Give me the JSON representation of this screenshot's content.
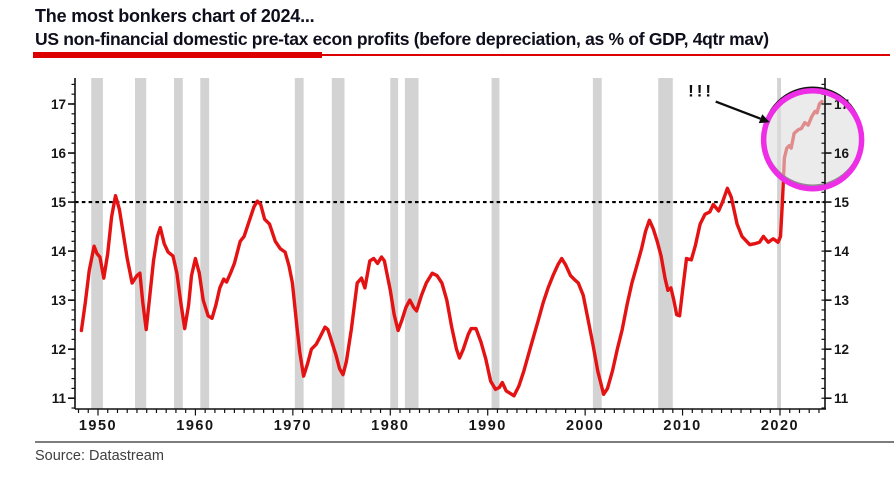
{
  "header": {
    "title": "The most bonkers chart of 2024...",
    "subtitle": "US non-financial domestic pre-tax econ profits (before depreciation, as % of GDP, 4qtr mav)"
  },
  "footer": {
    "source": "Source: Datastream"
  },
  "colors": {
    "line": "#e41212",
    "recession_band": "#d3d3d3",
    "reference_line": "#000000",
    "axis": "#111111",
    "tick_label": "#161616",
    "title_underline": "#dd0000",
    "highlight_circle": "#ee2de6",
    "highlight_shadow": "#141414",
    "highlight_fill": "rgba(222,222,222,0.6)"
  },
  "chart_data": {
    "type": "line",
    "title": "US non-financial domestic pre-tax econ profits (before depreciation, as % of GDP, 4qtr mav)",
    "xlabel": "",
    "ylabel": "",
    "x_range": [
      1947.64,
      2024.62
    ],
    "y_range": [
      10.78,
      17.53
    ],
    "x_ticks": [
      1950,
      1960,
      1970,
      1980,
      1990,
      2000,
      2010,
      2020
    ],
    "y_ticks": [
      11,
      12,
      13,
      14,
      15,
      16,
      17
    ],
    "y_minor_step": 0.2,
    "grid": "off",
    "legend": "none",
    "reference_line_value": 15,
    "recessions": [
      [
        1949.3,
        1950.5
      ],
      [
        1953.8,
        1954.95
      ],
      [
        1957.8,
        1958.7
      ],
      [
        1960.5,
        1961.4
      ],
      [
        1970.2,
        1971.1
      ],
      [
        1974.0,
        1975.3
      ],
      [
        1980.0,
        1980.8
      ],
      [
        1981.5,
        1982.9
      ],
      [
        1990.4,
        1991.2
      ],
      [
        2000.8,
        2001.7
      ],
      [
        2007.5,
        2009.0
      ],
      [
        2019.7,
        2020.1
      ]
    ],
    "annotations": {
      "exclamation": {
        "text": "!!!",
        "year": 2011.9,
        "value": 17.28
      },
      "arrow": {
        "tail": {
          "year": 2013.4,
          "value": 17.05
        },
        "head": {
          "year": 2018.0,
          "value": 16.7
        }
      },
      "highlight_circle": {
        "center_year": 2023.35,
        "center_value": 16.27,
        "radius_px": 49
      }
    },
    "series": [
      {
        "name": "US non-financial domestic pre-tax econ profits, % of GDP, 4qtr mav",
        "points": [
          [
            1948.3,
            12.38
          ],
          [
            1948.7,
            12.95
          ],
          [
            1949.1,
            13.6
          ],
          [
            1949.6,
            14.1
          ],
          [
            1949.9,
            13.95
          ],
          [
            1950.2,
            13.88
          ],
          [
            1950.6,
            13.45
          ],
          [
            1951.0,
            13.95
          ],
          [
            1951.4,
            14.7
          ],
          [
            1951.8,
            15.13
          ],
          [
            1952.2,
            14.85
          ],
          [
            1952.6,
            14.35
          ],
          [
            1953.0,
            13.85
          ],
          [
            1953.5,
            13.35
          ],
          [
            1954.0,
            13.5
          ],
          [
            1954.3,
            13.55
          ],
          [
            1954.6,
            12.95
          ],
          [
            1954.95,
            12.4
          ],
          [
            1955.3,
            13.05
          ],
          [
            1955.7,
            13.8
          ],
          [
            1956.1,
            14.3
          ],
          [
            1956.4,
            14.48
          ],
          [
            1956.8,
            14.15
          ],
          [
            1957.2,
            13.98
          ],
          [
            1957.7,
            13.9
          ],
          [
            1958.1,
            13.55
          ],
          [
            1958.5,
            12.95
          ],
          [
            1958.9,
            12.42
          ],
          [
            1959.3,
            12.9
          ],
          [
            1959.6,
            13.5
          ],
          [
            1960.0,
            13.85
          ],
          [
            1960.4,
            13.55
          ],
          [
            1960.8,
            13.0
          ],
          [
            1961.3,
            12.68
          ],
          [
            1961.7,
            12.63
          ],
          [
            1962.1,
            12.9
          ],
          [
            1962.5,
            13.25
          ],
          [
            1962.9,
            13.43
          ],
          [
            1963.2,
            13.37
          ],
          [
            1963.6,
            13.55
          ],
          [
            1964.0,
            13.75
          ],
          [
            1964.6,
            14.2
          ],
          [
            1965.0,
            14.3
          ],
          [
            1965.5,
            14.6
          ],
          [
            1966.0,
            14.9
          ],
          [
            1966.35,
            15.02
          ],
          [
            1966.7,
            14.95
          ],
          [
            1967.1,
            14.65
          ],
          [
            1967.6,
            14.55
          ],
          [
            1968.2,
            14.2
          ],
          [
            1968.7,
            14.05
          ],
          [
            1969.2,
            13.98
          ],
          [
            1969.6,
            13.7
          ],
          [
            1969.95,
            13.35
          ],
          [
            1970.4,
            12.5
          ],
          [
            1970.7,
            11.95
          ],
          [
            1971.1,
            11.45
          ],
          [
            1971.5,
            11.7
          ],
          [
            1971.9,
            12.0
          ],
          [
            1972.4,
            12.1
          ],
          [
            1972.8,
            12.25
          ],
          [
            1973.3,
            12.45
          ],
          [
            1973.6,
            12.4
          ],
          [
            1974.0,
            12.15
          ],
          [
            1974.4,
            11.9
          ],
          [
            1974.8,
            11.6
          ],
          [
            1975.15,
            11.48
          ],
          [
            1975.5,
            11.75
          ],
          [
            1976.0,
            12.4
          ],
          [
            1976.6,
            13.35
          ],
          [
            1977.05,
            13.45
          ],
          [
            1977.4,
            13.25
          ],
          [
            1977.9,
            13.8
          ],
          [
            1978.3,
            13.85
          ],
          [
            1978.7,
            13.75
          ],
          [
            1979.1,
            13.88
          ],
          [
            1979.4,
            13.8
          ],
          [
            1980.0,
            13.2
          ],
          [
            1980.4,
            12.7
          ],
          [
            1980.8,
            12.38
          ],
          [
            1981.2,
            12.6
          ],
          [
            1981.6,
            12.85
          ],
          [
            1982.0,
            13.0
          ],
          [
            1982.4,
            12.85
          ],
          [
            1982.7,
            12.78
          ],
          [
            1983.2,
            13.1
          ],
          [
            1983.7,
            13.35
          ],
          [
            1984.3,
            13.55
          ],
          [
            1984.8,
            13.5
          ],
          [
            1985.3,
            13.35
          ],
          [
            1985.8,
            13.0
          ],
          [
            1986.3,
            12.45
          ],
          [
            1986.8,
            12.0
          ],
          [
            1987.1,
            11.82
          ],
          [
            1987.5,
            12.0
          ],
          [
            1988.0,
            12.3
          ],
          [
            1988.3,
            12.42
          ],
          [
            1988.8,
            12.42
          ],
          [
            1989.3,
            12.15
          ],
          [
            1989.8,
            11.8
          ],
          [
            1990.3,
            11.35
          ],
          [
            1990.8,
            11.18
          ],
          [
            1991.2,
            11.22
          ],
          [
            1991.5,
            11.32
          ],
          [
            1991.9,
            11.15
          ],
          [
            1992.3,
            11.1
          ],
          [
            1992.7,
            11.05
          ],
          [
            1993.2,
            11.25
          ],
          [
            1993.7,
            11.55
          ],
          [
            1994.2,
            11.9
          ],
          [
            1994.7,
            12.25
          ],
          [
            1995.2,
            12.6
          ],
          [
            1995.7,
            12.95
          ],
          [
            1996.2,
            13.25
          ],
          [
            1996.7,
            13.5
          ],
          [
            1997.2,
            13.72
          ],
          [
            1997.6,
            13.85
          ],
          [
            1998.0,
            13.72
          ],
          [
            1998.5,
            13.5
          ],
          [
            1998.9,
            13.42
          ],
          [
            1999.3,
            13.35
          ],
          [
            1999.8,
            13.1
          ],
          [
            2000.3,
            12.6
          ],
          [
            2000.8,
            12.1
          ],
          [
            2001.3,
            11.55
          ],
          [
            2001.9,
            11.08
          ],
          [
            2002.3,
            11.2
          ],
          [
            2002.8,
            11.55
          ],
          [
            2003.3,
            12.0
          ],
          [
            2003.8,
            12.4
          ],
          [
            2004.3,
            12.9
          ],
          [
            2004.8,
            13.35
          ],
          [
            2005.3,
            13.7
          ],
          [
            2005.8,
            14.05
          ],
          [
            2006.2,
            14.4
          ],
          [
            2006.6,
            14.63
          ],
          [
            2007.0,
            14.45
          ],
          [
            2007.4,
            14.2
          ],
          [
            2007.8,
            13.9
          ],
          [
            2008.2,
            13.45
          ],
          [
            2008.5,
            13.2
          ],
          [
            2008.8,
            13.25
          ],
          [
            2009.1,
            13.0
          ],
          [
            2009.4,
            12.7
          ],
          [
            2009.7,
            12.68
          ],
          [
            2010.0,
            13.2
          ],
          [
            2010.4,
            13.85
          ],
          [
            2010.9,
            13.82
          ],
          [
            2011.3,
            14.1
          ],
          [
            2011.8,
            14.55
          ],
          [
            2012.3,
            14.75
          ],
          [
            2012.8,
            14.8
          ],
          [
            2013.15,
            14.95
          ],
          [
            2013.7,
            14.82
          ],
          [
            2014.1,
            15.0
          ],
          [
            2014.6,
            15.28
          ],
          [
            2015.0,
            15.1
          ],
          [
            2015.6,
            14.55
          ],
          [
            2016.1,
            14.3
          ],
          [
            2016.9,
            14.13
          ],
          [
            2017.4,
            14.15
          ],
          [
            2017.9,
            14.18
          ],
          [
            2018.3,
            14.3
          ],
          [
            2018.8,
            14.18
          ],
          [
            2019.3,
            14.25
          ],
          [
            2019.8,
            14.18
          ],
          [
            2020.05,
            14.3
          ],
          [
            2020.25,
            15.0
          ],
          [
            2020.45,
            15.9
          ],
          [
            2020.7,
            16.1
          ],
          [
            2020.95,
            16.15
          ],
          [
            2021.15,
            16.1
          ],
          [
            2021.45,
            16.4
          ],
          [
            2021.9,
            16.48
          ],
          [
            2022.2,
            16.5
          ],
          [
            2022.55,
            16.62
          ],
          [
            2022.9,
            16.57
          ],
          [
            2023.25,
            16.74
          ],
          [
            2023.6,
            16.85
          ],
          [
            2023.8,
            16.82
          ],
          [
            2024.05,
            17.0
          ],
          [
            2024.3,
            17.05
          ]
        ]
      }
    ]
  }
}
